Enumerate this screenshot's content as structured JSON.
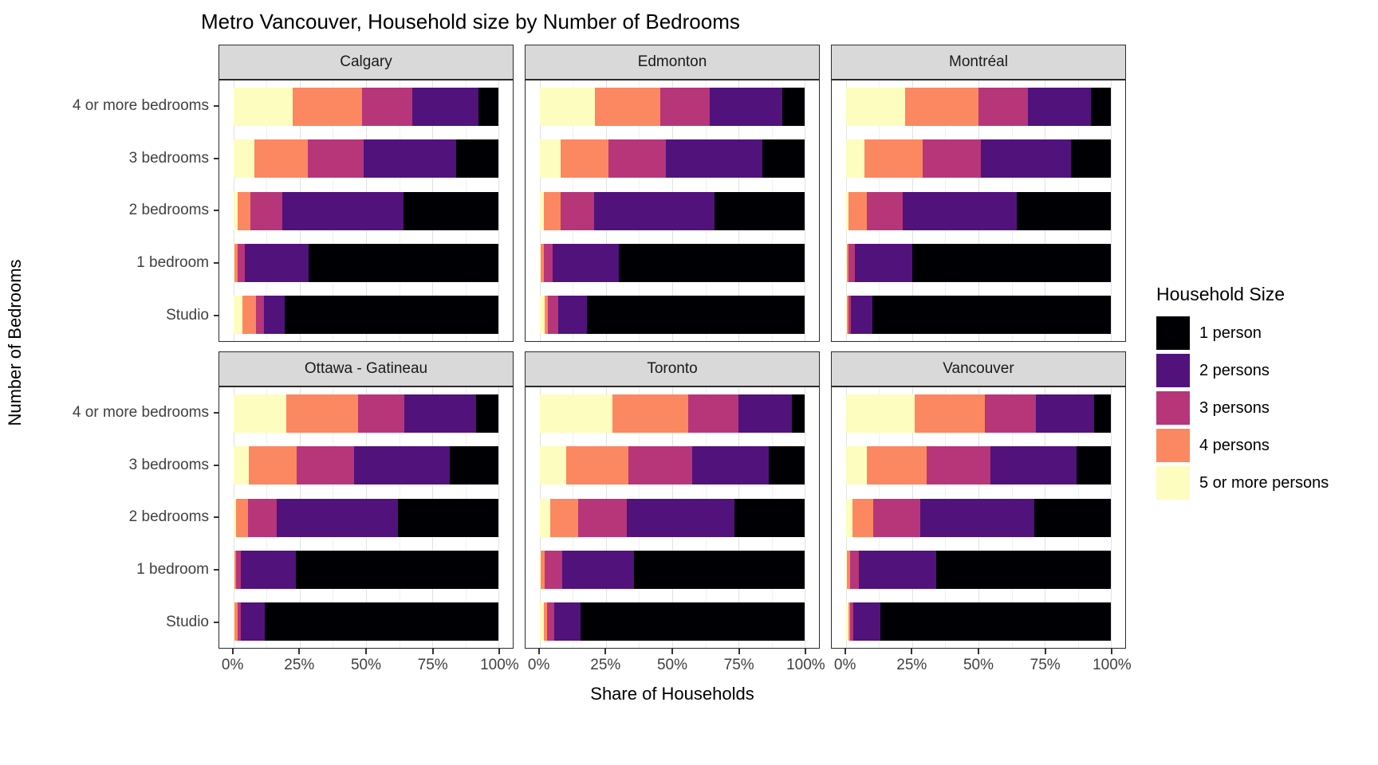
{
  "title": "Metro Vancouver, Household size by Number of Bedrooms",
  "axes": {
    "x": {
      "title": "Share of Households",
      "tick_labels": [
        "0%",
        "25%",
        "50%",
        "75%",
        "100%"
      ],
      "tick_values": [
        0,
        25,
        50,
        75,
        100
      ],
      "minor_tick_values": [
        12.5,
        37.5,
        62.5,
        87.5
      ]
    },
    "y": {
      "title": "Number of Bedrooms",
      "categories": [
        "4 or more bedrooms",
        "3 bedrooms",
        "2 bedrooms",
        "1 bedroom",
        "Studio"
      ]
    }
  },
  "legend": {
    "title": "Household Size",
    "entries": [
      {
        "label": "1 person",
        "color": "#000004"
      },
      {
        "label": "2 persons",
        "color": "#51127C"
      },
      {
        "label": "3 persons",
        "color": "#B63679"
      },
      {
        "label": "4 persons",
        "color": "#FB8861"
      },
      {
        "label": "5 or more persons",
        "color": "#FCFDBF"
      }
    ]
  },
  "chart_data": {
    "type": "bar",
    "orientation": "horizontal",
    "stacked": true,
    "units": "percent of households",
    "xlim": [
      0,
      100
    ],
    "grid": true,
    "legend_position": "right",
    "stack_order_left_to_right": [
      "5 or more persons",
      "4 persons",
      "3 persons",
      "2 persons",
      "1 person"
    ],
    "categories": [
      "4 or more bedrooms",
      "3 bedrooms",
      "2 bedrooms",
      "1 bedroom",
      "Studio"
    ],
    "facets": [
      {
        "name": "Calgary",
        "series": [
          {
            "name": "1 person",
            "values": [
              7.5,
              16,
              36,
              71.5,
              80.5
            ]
          },
          {
            "name": "2 persons",
            "values": [
              25,
              35,
              45.5,
              24,
              8
            ]
          },
          {
            "name": "3 persons",
            "values": [
              19,
              21,
              12,
              3,
              3
            ]
          },
          {
            "name": "4 persons",
            "values": [
              26,
              20,
              5,
              1,
              5
            ]
          },
          {
            "name": "5 or more persons",
            "values": [
              22.5,
              8,
              1.5,
              0.5,
              3.5
            ]
          }
        ]
      },
      {
        "name": "Edmonton",
        "series": [
          {
            "name": "1 person",
            "values": [
              8.5,
              16,
              34,
              70,
              82
            ]
          },
          {
            "name": "2 persons",
            "values": [
              27.5,
              36.5,
              45.5,
              25,
              11
            ]
          },
          {
            "name": "3 persons",
            "values": [
              18.5,
              21.5,
              12.5,
              3.5,
              4
            ]
          },
          {
            "name": "4 persons",
            "values": [
              24.5,
              18,
              6.5,
              1,
              1
            ]
          },
          {
            "name": "5 or more persons",
            "values": [
              21,
              8,
              1.5,
              0.5,
              2
            ]
          }
        ]
      },
      {
        "name": "Montréal",
        "series": [
          {
            "name": "1 person",
            "values": [
              7.5,
              15,
              35.5,
              75,
              90
            ]
          },
          {
            "name": "2 persons",
            "values": [
              24,
              34,
              43,
              21.5,
              8
            ]
          },
          {
            "name": "3 persons",
            "values": [
              18.5,
              22,
              13.5,
              2.5,
              1
            ]
          },
          {
            "name": "4 persons",
            "values": [
              27.5,
              22,
              7,
              0.5,
              0.5
            ]
          },
          {
            "name": "5 or more persons",
            "values": [
              22.5,
              7,
              1,
              0.5,
              0.5
            ]
          }
        ]
      },
      {
        "name": "Ottawa - Gatineau",
        "series": [
          {
            "name": "1 person",
            "values": [
              8.5,
              18.5,
              38,
              76.5,
              88
            ]
          },
          {
            "name": "2 persons",
            "values": [
              27,
              36,
              45.5,
              20.5,
              9
            ]
          },
          {
            "name": "3 persons",
            "values": [
              17.5,
              21.5,
              11,
              2,
              1.5
            ]
          },
          {
            "name": "4 persons",
            "values": [
              27,
              18,
              4.5,
              0.5,
              1
            ]
          },
          {
            "name": "5 or more persons",
            "values": [
              20,
              6,
              1,
              0.5,
              0.5
            ]
          }
        ]
      },
      {
        "name": "Toronto",
        "series": [
          {
            "name": "1 person",
            "values": [
              5,
              13.5,
              26.5,
              64.5,
              84.5
            ]
          },
          {
            "name": "2 persons",
            "values": [
              20,
              29,
              40.5,
              27,
              10
            ]
          },
          {
            "name": "3 persons",
            "values": [
              19,
              24,
              18.5,
              6.5,
              2.5
            ]
          },
          {
            "name": "4 persons",
            "values": [
              28.5,
              23.5,
              10.5,
              1.5,
              1.5
            ]
          },
          {
            "name": "5 or more persons",
            "values": [
              27.5,
              10,
              4,
              0.5,
              1.5
            ]
          }
        ]
      },
      {
        "name": "Vancouver",
        "series": [
          {
            "name": "1 person",
            "values": [
              6.5,
              13,
              29,
              66,
              87
            ]
          },
          {
            "name": "2 persons",
            "values": [
              22,
              32.5,
              43,
              29,
              10
            ]
          },
          {
            "name": "3 persons",
            "values": [
              19,
              24,
              17.5,
              3.5,
              1.5
            ]
          },
          {
            "name": "4 persons",
            "values": [
              26.5,
              22.5,
              8,
              1,
              0.5
            ]
          },
          {
            "name": "5 or more persons",
            "values": [
              26,
              8,
              2.5,
              0.5,
              1
            ]
          }
        ]
      }
    ]
  },
  "theme": {
    "strip_background": "#D9D9D9",
    "panel_border": "#2b2b2b",
    "grid_major": "#E2E2E2",
    "grid_minor": "#F0F0F0",
    "axis_text_color": "#404040"
  }
}
